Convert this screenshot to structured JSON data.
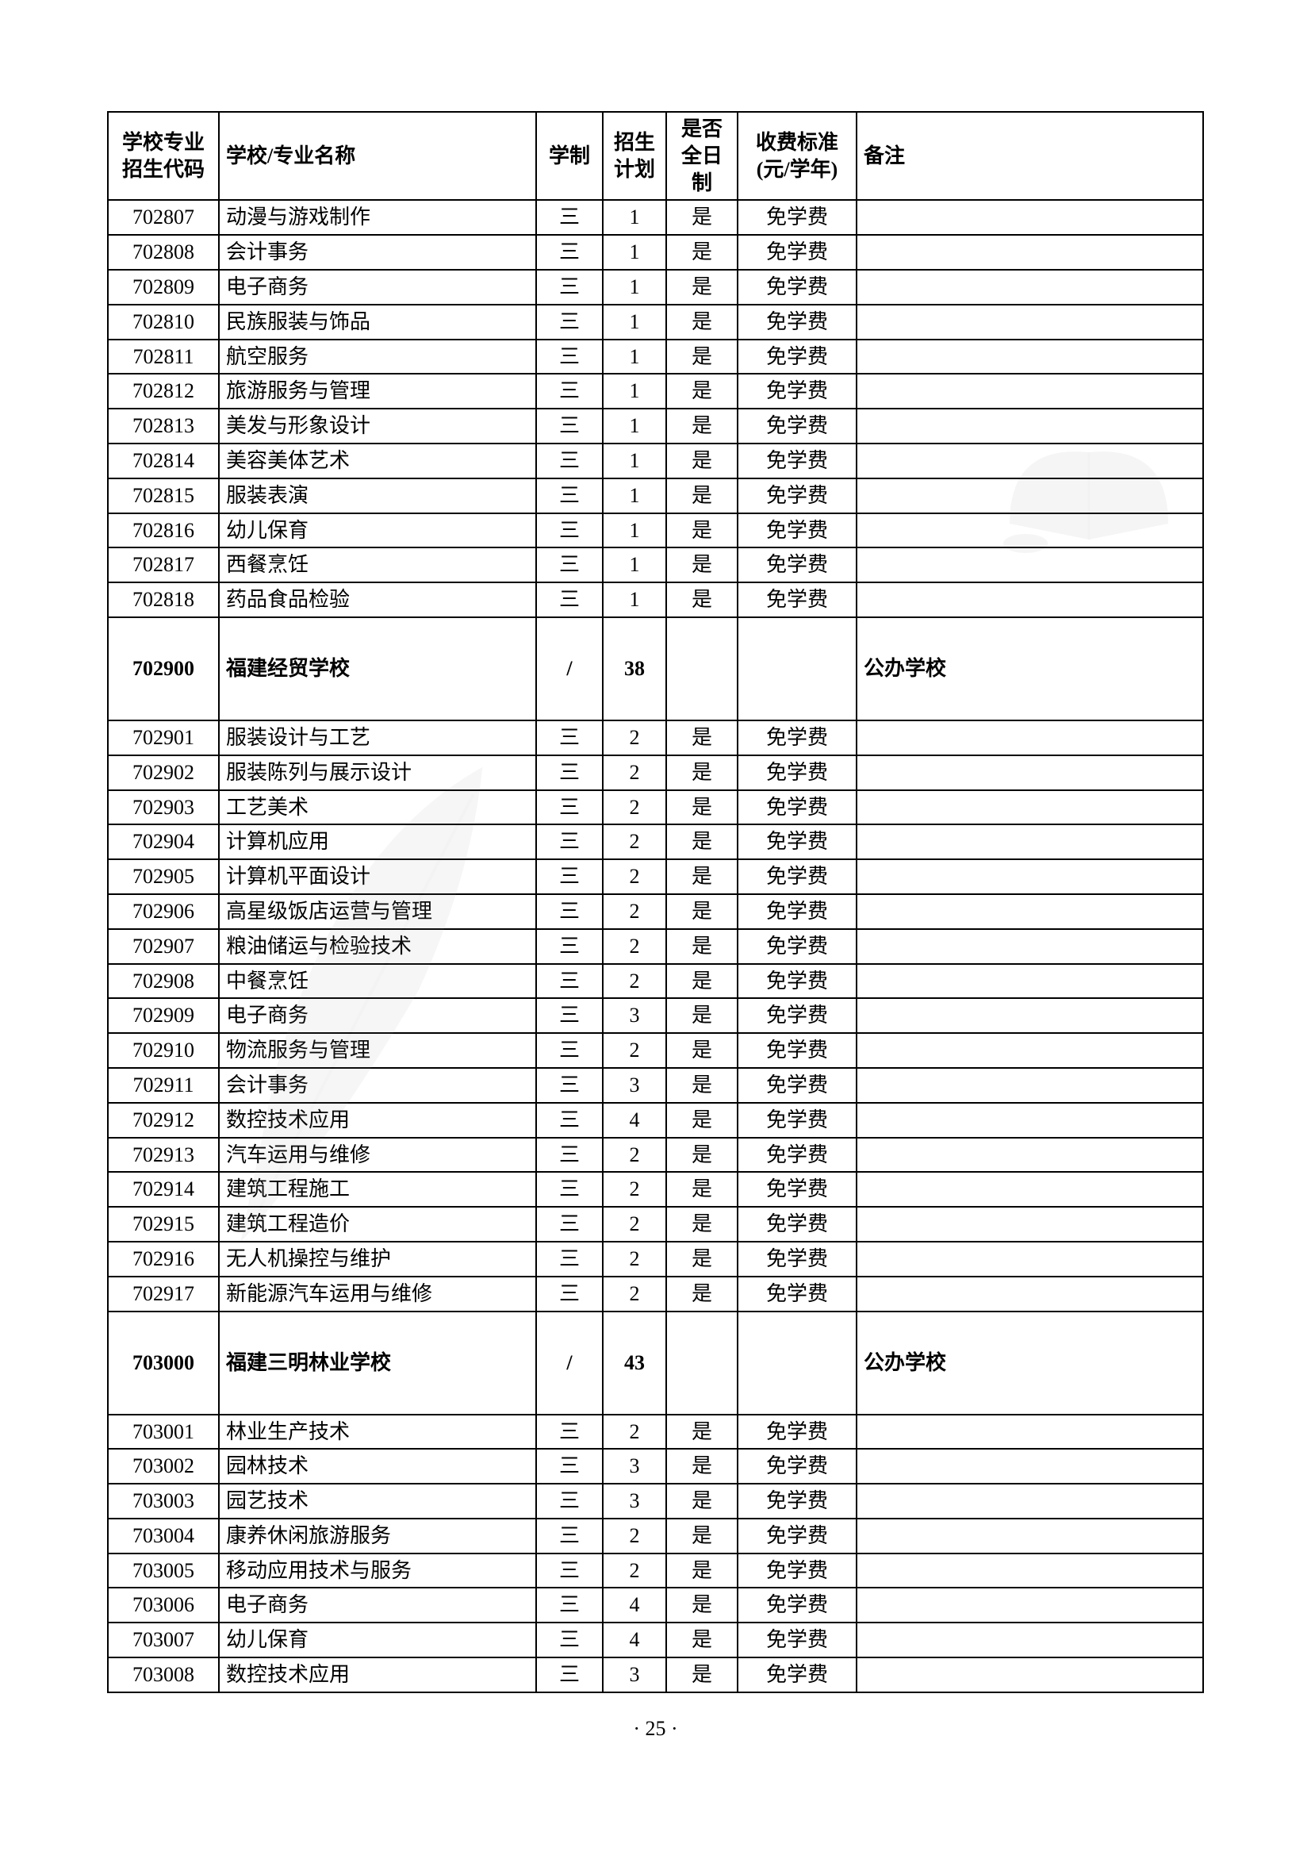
{
  "headers": {
    "code": "学校专业\n招生代码",
    "name": "学校/专业名称",
    "duration": "学制",
    "plan": "招生\n计划",
    "fulltime": "是否\n全日制",
    "fee": "收费标准\n(元/学年)",
    "remark": "备注"
  },
  "rows": [
    {
      "type": "major",
      "code": "702807",
      "name": "动漫与游戏制作",
      "duration": "三",
      "plan": "1",
      "fulltime": "是",
      "fee": "免学费",
      "remark": ""
    },
    {
      "type": "major",
      "code": "702808",
      "name": "会计事务",
      "duration": "三",
      "plan": "1",
      "fulltime": "是",
      "fee": "免学费",
      "remark": ""
    },
    {
      "type": "major",
      "code": "702809",
      "name": "电子商务",
      "duration": "三",
      "plan": "1",
      "fulltime": "是",
      "fee": "免学费",
      "remark": ""
    },
    {
      "type": "major",
      "code": "702810",
      "name": "民族服装与饰品",
      "duration": "三",
      "plan": "1",
      "fulltime": "是",
      "fee": "免学费",
      "remark": ""
    },
    {
      "type": "major",
      "code": "702811",
      "name": "航空服务",
      "duration": "三",
      "plan": "1",
      "fulltime": "是",
      "fee": "免学费",
      "remark": ""
    },
    {
      "type": "major",
      "code": "702812",
      "name": "旅游服务与管理",
      "duration": "三",
      "plan": "1",
      "fulltime": "是",
      "fee": "免学费",
      "remark": ""
    },
    {
      "type": "major",
      "code": "702813",
      "name": "美发与形象设计",
      "duration": "三",
      "plan": "1",
      "fulltime": "是",
      "fee": "免学费",
      "remark": ""
    },
    {
      "type": "major",
      "code": "702814",
      "name": "美容美体艺术",
      "duration": "三",
      "plan": "1",
      "fulltime": "是",
      "fee": "免学费",
      "remark": ""
    },
    {
      "type": "major",
      "code": "702815",
      "name": "服装表演",
      "duration": "三",
      "plan": "1",
      "fulltime": "是",
      "fee": "免学费",
      "remark": ""
    },
    {
      "type": "major",
      "code": "702816",
      "name": "幼儿保育",
      "duration": "三",
      "plan": "1",
      "fulltime": "是",
      "fee": "免学费",
      "remark": ""
    },
    {
      "type": "major",
      "code": "702817",
      "name": "西餐烹饪",
      "duration": "三",
      "plan": "1",
      "fulltime": "是",
      "fee": "免学费",
      "remark": ""
    },
    {
      "type": "major",
      "code": "702818",
      "name": "药品食品检验",
      "duration": "三",
      "plan": "1",
      "fulltime": "是",
      "fee": "免学费",
      "remark": ""
    },
    {
      "type": "school",
      "code": "702900",
      "name": "福建经贸学校",
      "duration": "/",
      "plan": "38",
      "fulltime": "",
      "fee": "",
      "remark": "公办学校"
    },
    {
      "type": "major",
      "code": "702901",
      "name": "服装设计与工艺",
      "duration": "三",
      "plan": "2",
      "fulltime": "是",
      "fee": "免学费",
      "remark": ""
    },
    {
      "type": "major",
      "code": "702902",
      "name": "服装陈列与展示设计",
      "duration": "三",
      "plan": "2",
      "fulltime": "是",
      "fee": "免学费",
      "remark": ""
    },
    {
      "type": "major",
      "code": "702903",
      "name": "工艺美术",
      "duration": "三",
      "plan": "2",
      "fulltime": "是",
      "fee": "免学费",
      "remark": ""
    },
    {
      "type": "major",
      "code": "702904",
      "name": "计算机应用",
      "duration": "三",
      "plan": "2",
      "fulltime": "是",
      "fee": "免学费",
      "remark": ""
    },
    {
      "type": "major",
      "code": "702905",
      "name": "计算机平面设计",
      "duration": "三",
      "plan": "2",
      "fulltime": "是",
      "fee": "免学费",
      "remark": ""
    },
    {
      "type": "major",
      "code": "702906",
      "name": "高星级饭店运营与管理",
      "duration": "三",
      "plan": "2",
      "fulltime": "是",
      "fee": "免学费",
      "remark": ""
    },
    {
      "type": "major",
      "code": "702907",
      "name": "粮油储运与检验技术",
      "duration": "三",
      "plan": "2",
      "fulltime": "是",
      "fee": "免学费",
      "remark": ""
    },
    {
      "type": "major",
      "code": "702908",
      "name": "中餐烹饪",
      "duration": "三",
      "plan": "2",
      "fulltime": "是",
      "fee": "免学费",
      "remark": ""
    },
    {
      "type": "major",
      "code": "702909",
      "name": "电子商务",
      "duration": "三",
      "plan": "3",
      "fulltime": "是",
      "fee": "免学费",
      "remark": ""
    },
    {
      "type": "major",
      "code": "702910",
      "name": "物流服务与管理",
      "duration": "三",
      "plan": "2",
      "fulltime": "是",
      "fee": "免学费",
      "remark": ""
    },
    {
      "type": "major",
      "code": "702911",
      "name": "会计事务",
      "duration": "三",
      "plan": "3",
      "fulltime": "是",
      "fee": "免学费",
      "remark": ""
    },
    {
      "type": "major",
      "code": "702912",
      "name": "数控技术应用",
      "duration": "三",
      "plan": "4",
      "fulltime": "是",
      "fee": "免学费",
      "remark": ""
    },
    {
      "type": "major",
      "code": "702913",
      "name": "汽车运用与维修",
      "duration": "三",
      "plan": "2",
      "fulltime": "是",
      "fee": "免学费",
      "remark": ""
    },
    {
      "type": "major",
      "code": "702914",
      "name": "建筑工程施工",
      "duration": "三",
      "plan": "2",
      "fulltime": "是",
      "fee": "免学费",
      "remark": ""
    },
    {
      "type": "major",
      "code": "702915",
      "name": "建筑工程造价",
      "duration": "三",
      "plan": "2",
      "fulltime": "是",
      "fee": "免学费",
      "remark": ""
    },
    {
      "type": "major",
      "code": "702916",
      "name": "无人机操控与维护",
      "duration": "三",
      "plan": "2",
      "fulltime": "是",
      "fee": "免学费",
      "remark": ""
    },
    {
      "type": "major",
      "code": "702917",
      "name": "新能源汽车运用与维修",
      "duration": "三",
      "plan": "2",
      "fulltime": "是",
      "fee": "免学费",
      "remark": ""
    },
    {
      "type": "school",
      "code": "703000",
      "name": "福建三明林业学校",
      "duration": "/",
      "plan": "43",
      "fulltime": "",
      "fee": "",
      "remark": "公办学校"
    },
    {
      "type": "major",
      "code": "703001",
      "name": "林业生产技术",
      "duration": "三",
      "plan": "2",
      "fulltime": "是",
      "fee": "免学费",
      "remark": ""
    },
    {
      "type": "major",
      "code": "703002",
      "name": "园林技术",
      "duration": "三",
      "plan": "3",
      "fulltime": "是",
      "fee": "免学费",
      "remark": ""
    },
    {
      "type": "major",
      "code": "703003",
      "name": "园艺技术",
      "duration": "三",
      "plan": "3",
      "fulltime": "是",
      "fee": "免学费",
      "remark": ""
    },
    {
      "type": "major",
      "code": "703004",
      "name": "康养休闲旅游服务",
      "duration": "三",
      "plan": "2",
      "fulltime": "是",
      "fee": "免学费",
      "remark": ""
    },
    {
      "type": "major",
      "code": "703005",
      "name": "移动应用技术与服务",
      "duration": "三",
      "plan": "2",
      "fulltime": "是",
      "fee": "免学费",
      "remark": ""
    },
    {
      "type": "major",
      "code": "703006",
      "name": "电子商务",
      "duration": "三",
      "plan": "4",
      "fulltime": "是",
      "fee": "免学费",
      "remark": ""
    },
    {
      "type": "major",
      "code": "703007",
      "name": "幼儿保育",
      "duration": "三",
      "plan": "4",
      "fulltime": "是",
      "fee": "免学费",
      "remark": ""
    },
    {
      "type": "major",
      "code": "703008",
      "name": "数控技术应用",
      "duration": "三",
      "plan": "3",
      "fulltime": "是",
      "fee": "免学费",
      "remark": ""
    }
  ],
  "page_number": "·  25  ·"
}
